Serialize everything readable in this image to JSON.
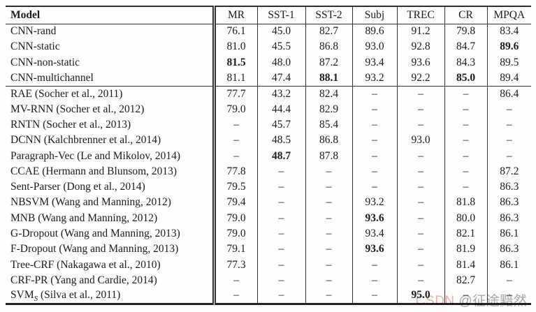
{
  "table": {
    "columns": [
      "Model",
      "MR",
      "SST-1",
      "SST-2",
      "Subj",
      "TREC",
      "CR",
      "MPQA"
    ],
    "missing_value_glyph": "–",
    "rows": [
      {
        "group": 0,
        "model": "CNN-rand",
        "model_sub": "",
        "model_rest": "",
        "values": [
          "76.1",
          "45.0",
          "82.7",
          "89.6",
          "91.2",
          "79.8",
          "83.4"
        ],
        "bold": []
      },
      {
        "group": 0,
        "model": "CNN-static",
        "model_sub": "",
        "model_rest": "",
        "values": [
          "81.0",
          "45.5",
          "86.8",
          "93.0",
          "92.8",
          "84.7",
          "89.6"
        ],
        "bold": [
          6
        ]
      },
      {
        "group": 0,
        "model": "CNN-non-static",
        "model_sub": "",
        "model_rest": "",
        "values": [
          "81.5",
          "48.0",
          "87.2",
          "93.4",
          "93.6",
          "84.3",
          "89.5"
        ],
        "bold": [
          0
        ]
      },
      {
        "group": 0,
        "model": "CNN-multichannel",
        "model_sub": "",
        "model_rest": "",
        "values": [
          "81.1",
          "47.4",
          "88.1",
          "93.2",
          "92.2",
          "85.0",
          "89.4"
        ],
        "bold": [
          2,
          5
        ]
      },
      {
        "group": 1,
        "model": "RAE (Socher et al., 2011)",
        "model_sub": "",
        "model_rest": "",
        "values": [
          "77.7",
          "43.2",
          "82.4",
          "–",
          "–",
          "–",
          "86.4"
        ],
        "bold": []
      },
      {
        "group": 1,
        "model": "MV-RNN (Socher et al., 2012)",
        "model_sub": "",
        "model_rest": "",
        "values": [
          "79.0",
          "44.4",
          "82.9",
          "–",
          "–",
          "–",
          "–"
        ],
        "bold": []
      },
      {
        "group": 1,
        "model": "RNTN (Socher et al., 2013)",
        "model_sub": "",
        "model_rest": "",
        "values": [
          "–",
          "45.7",
          "85.4",
          "–",
          "–",
          "–",
          "–"
        ],
        "bold": []
      },
      {
        "group": 1,
        "model": "DCNN (Kalchbrenner et al., 2014)",
        "model_sub": "",
        "model_rest": "",
        "values": [
          "–",
          "48.5",
          "86.8",
          "–",
          "93.0",
          "–",
          "–"
        ],
        "bold": []
      },
      {
        "group": 1,
        "model": "Paragraph-Vec (Le and Mikolov, 2014)",
        "model_sub": "",
        "model_rest": "",
        "values": [
          "–",
          "48.7",
          "87.8",
          "–",
          "–",
          "–",
          "–"
        ],
        "bold": [
          1
        ]
      },
      {
        "group": 1,
        "model": "CCAE (Hermann and Blunsom, 2013)",
        "model_sub": "",
        "model_rest": "",
        "values": [
          "77.8",
          "–",
          "–",
          "–",
          "–",
          "–",
          "87.2"
        ],
        "bold": []
      },
      {
        "group": 1,
        "model": "Sent-Parser (Dong et al., 2014)",
        "model_sub": "",
        "model_rest": "",
        "values": [
          "79.5",
          "–",
          "–",
          "–",
          "–",
          "–",
          "86.3"
        ],
        "bold": []
      },
      {
        "group": 1,
        "model": "NBSVM (Wang and Manning, 2012)",
        "model_sub": "",
        "model_rest": "",
        "values": [
          "79.4",
          "–",
          "–",
          "93.2",
          "–",
          "81.8",
          "86.3"
        ],
        "bold": []
      },
      {
        "group": 1,
        "model": "MNB (Wang and Manning, 2012)",
        "model_sub": "",
        "model_rest": "",
        "values": [
          "79.0",
          "–",
          "–",
          "93.6",
          "–",
          "80.0",
          "86.3"
        ],
        "bold": [
          3
        ]
      },
      {
        "group": 1,
        "model": "G-Dropout (Wang and Manning, 2013)",
        "model_sub": "",
        "model_rest": "",
        "values": [
          "79.0",
          "–",
          "–",
          "93.4",
          "–",
          "82.1",
          "86.1"
        ],
        "bold": []
      },
      {
        "group": 1,
        "model": "F-Dropout (Wang and Manning, 2013)",
        "model_sub": "",
        "model_rest": "",
        "values": [
          "79.1",
          "–",
          "–",
          "93.6",
          "–",
          "81.9",
          "86.3"
        ],
        "bold": [
          3
        ]
      },
      {
        "group": 1,
        "model": "Tree-CRF (Nakagawa et al., 2010)",
        "model_sub": "",
        "model_rest": "",
        "values": [
          "77.3",
          "–",
          "–",
          "–",
          "–",
          "81.4",
          "86.1"
        ],
        "bold": []
      },
      {
        "group": 1,
        "model": "CRF-PR (Yang and Cardie, 2014)",
        "model_sub": "",
        "model_rest": "",
        "values": [
          "–",
          "–",
          "–",
          "–",
          "–",
          "82.7",
          "–"
        ],
        "bold": []
      },
      {
        "group": 1,
        "model": "SVM",
        "model_sub": "S",
        "model_rest": " (Silva et al., 2011)",
        "values": [
          "–",
          "–",
          "–",
          "–",
          "95.0",
          "–",
          "–"
        ],
        "bold": [
          4
        ]
      }
    ]
  },
  "watermark": {
    "site": "CSDN",
    "handle": " @征途黯然."
  },
  "colors": {
    "text": "#1b1b1b",
    "border": "#2e2e2e",
    "background": "#fefefe",
    "watermark_site": "#f0aeac",
    "watermark_handle": "#aaa7a9"
  }
}
